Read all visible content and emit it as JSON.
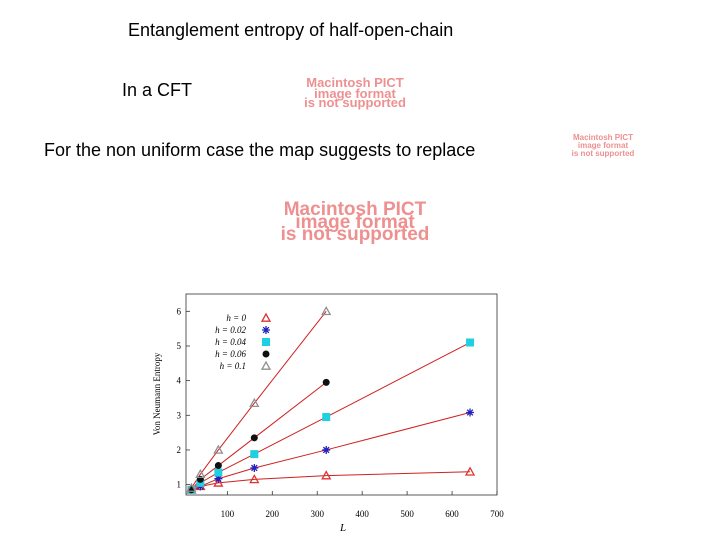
{
  "slide": {
    "title": "Entanglement entropy of half-open-chain",
    "line1": "In a CFT",
    "line2": "For the non uniform case the map suggests to replace",
    "placeholders": [
      [
        "Macintosh PICT",
        "image format",
        "is not supported"
      ],
      [
        "Macintosh PICT",
        "image format",
        "is not supported"
      ],
      [
        "Macintosh PICT",
        "image format",
        "is not supported"
      ]
    ]
  },
  "chart_data": {
    "type": "line",
    "xlabel": "L",
    "ylabel": "Von Neumann Entropy",
    "x": [
      20,
      40,
      80,
      160,
      320,
      640
    ],
    "series": [
      {
        "name": "h = 0",
        "color": "#e03030",
        "marker": "triangle",
        "values": [
          0.85,
          0.95,
          1.05,
          1.15,
          1.26,
          1.37
        ]
      },
      {
        "name": "h = 0.02",
        "color": "#2020c0",
        "marker": "star",
        "values": [
          0.85,
          0.95,
          1.17,
          1.48,
          2.0,
          3.08
        ]
      },
      {
        "name": "h = 0.04",
        "color": "#20d0e0",
        "marker": "square",
        "values": [
          0.85,
          1.05,
          1.35,
          1.88,
          2.95,
          5.1
        ]
      },
      {
        "name": "h = 0.06",
        "color": "#111111",
        "marker": "circle",
        "values": [
          0.85,
          1.15,
          1.55,
          2.35,
          3.95,
          null
        ]
      },
      {
        "name": "h = 0.1",
        "color": "#909090",
        "marker": "triangle",
        "values": [
          0.9,
          1.3,
          2.0,
          3.35,
          6.0,
          null
        ]
      }
    ],
    "line_color": "#d02020",
    "xlim": [
      8,
      700
    ],
    "ylim": [
      0.7,
      6.5
    ],
    "xticks": [
      100,
      200,
      300,
      400,
      500,
      600,
      700
    ],
    "yticks": [
      1,
      2,
      3,
      4,
      5,
      6
    ],
    "legend": "upper left"
  }
}
